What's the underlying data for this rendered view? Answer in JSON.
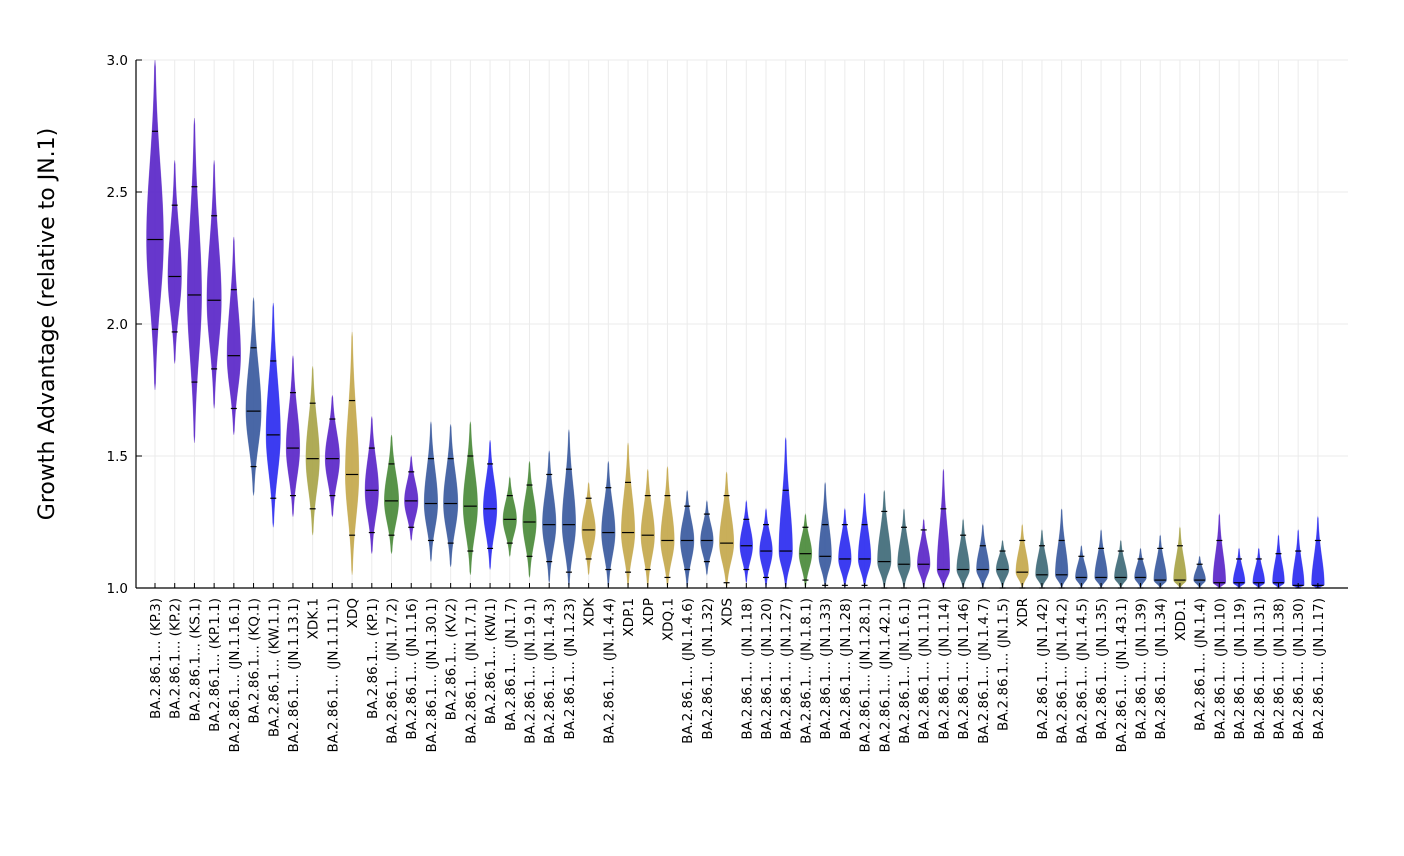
{
  "chart_data": {
    "type": "violin",
    "title": "",
    "xlabel": "",
    "ylabel": "Growth Advantage (relative to JN.1)",
    "ylim": [
      1.0,
      3.0
    ],
    "yticks": [
      "1.0",
      "1.5",
      "2.0",
      "2.5",
      "3.0"
    ],
    "grid": true,
    "legend": "none",
    "palette": {
      "purple": "#5a26c8",
      "blue": "#2b2bf0",
      "steel": "#3a5a9e",
      "green": "#4a8a3a",
      "gold": "#c4a84c",
      "teal": "#3f6a78",
      "olive": "#a8a448"
    },
    "series": [
      {
        "label": "BA.2.86.1... (KP.3)",
        "color": "purple",
        "median": 2.32,
        "q_low": 1.98,
        "q_high": 2.73,
        "min": 1.75,
        "max": 3.0,
        "width": 1.0
      },
      {
        "label": "BA.2.86.1... (KP.2)",
        "color": "purple",
        "median": 2.18,
        "q_low": 1.97,
        "q_high": 2.45,
        "min": 1.85,
        "max": 2.62,
        "width": 0.8
      },
      {
        "label": "BA.2.86.1... (KS.1)",
        "color": "purple",
        "median": 2.11,
        "q_low": 1.78,
        "q_high": 2.52,
        "min": 1.55,
        "max": 2.78,
        "width": 0.85
      },
      {
        "label": "BA.2.86.1... (KP.1.1)",
        "color": "purple",
        "median": 2.09,
        "q_low": 1.83,
        "q_high": 2.41,
        "min": 1.68,
        "max": 2.62,
        "width": 0.85
      },
      {
        "label": "BA.2.86.1... (JN.1.16.1)",
        "color": "purple",
        "median": 1.88,
        "q_low": 1.68,
        "q_high": 2.13,
        "min": 1.58,
        "max": 2.33,
        "width": 0.8
      },
      {
        "label": "BA.2.86.1... (KQ.1)",
        "color": "steel",
        "median": 1.67,
        "q_low": 1.46,
        "q_high": 1.91,
        "min": 1.35,
        "max": 2.1,
        "width": 0.9
      },
      {
        "label": "BA.2.86.1... (KW.1.1)",
        "color": "blue",
        "median": 1.58,
        "q_low": 1.34,
        "q_high": 1.86,
        "min": 1.23,
        "max": 2.08,
        "width": 0.85
      },
      {
        "label": "BA.2.86.1... (JN.1.13.1)",
        "color": "purple",
        "median": 1.53,
        "q_low": 1.35,
        "q_high": 1.74,
        "min": 1.27,
        "max": 1.88,
        "width": 0.8
      },
      {
        "label": "XDK.1",
        "color": "olive",
        "median": 1.49,
        "q_low": 1.3,
        "q_high": 1.7,
        "min": 1.2,
        "max": 1.84,
        "width": 0.8
      },
      {
        "label": "BA.2.86.1... (JN.1.11.1)",
        "color": "purple",
        "median": 1.49,
        "q_low": 1.35,
        "q_high": 1.64,
        "min": 1.27,
        "max": 1.73,
        "width": 0.85
      },
      {
        "label": "XDQ",
        "color": "gold",
        "median": 1.43,
        "q_low": 1.2,
        "q_high": 1.71,
        "min": 1.05,
        "max": 1.97,
        "width": 0.8
      },
      {
        "label": "BA.2.86.1... (KP.1)",
        "color": "purple",
        "median": 1.37,
        "q_low": 1.21,
        "q_high": 1.53,
        "min": 1.13,
        "max": 1.65,
        "width": 0.8
      },
      {
        "label": "BA.2.86.1... (JN.1.7.2)",
        "color": "green",
        "median": 1.33,
        "q_low": 1.2,
        "q_high": 1.47,
        "min": 1.13,
        "max": 1.58,
        "width": 0.85
      },
      {
        "label": "BA.2.86.1... (JN.1.16)",
        "color": "purple",
        "median": 1.33,
        "q_low": 1.23,
        "q_high": 1.44,
        "min": 1.18,
        "max": 1.5,
        "width": 0.8
      },
      {
        "label": "BA.2.86.1... (JN.1.30.1)",
        "color": "steel",
        "median": 1.32,
        "q_low": 1.18,
        "q_high": 1.49,
        "min": 1.1,
        "max": 1.63,
        "width": 0.8
      },
      {
        "label": "BA.2.86.1... (KV.2)",
        "color": "steel",
        "median": 1.32,
        "q_low": 1.17,
        "q_high": 1.49,
        "min": 1.08,
        "max": 1.62,
        "width": 0.85
      },
      {
        "label": "BA.2.86.1... (JN.1.7.1)",
        "color": "green",
        "median": 1.31,
        "q_low": 1.14,
        "q_high": 1.5,
        "min": 1.05,
        "max": 1.63,
        "width": 0.85
      },
      {
        "label": "BA.2.86.1... (KW.1)",
        "color": "blue",
        "median": 1.3,
        "q_low": 1.15,
        "q_high": 1.47,
        "min": 1.07,
        "max": 1.56,
        "width": 0.8
      },
      {
        "label": "BA.2.86.1... (JN.1.7)",
        "color": "green",
        "median": 1.26,
        "q_low": 1.17,
        "q_high": 1.35,
        "min": 1.12,
        "max": 1.42,
        "width": 0.8
      },
      {
        "label": "BA.2.86.1... (JN.1.9.1)",
        "color": "green",
        "median": 1.25,
        "q_low": 1.12,
        "q_high": 1.39,
        "min": 1.04,
        "max": 1.48,
        "width": 0.8
      },
      {
        "label": "BA.2.86.1... (JN.1.4.3)",
        "color": "steel",
        "median": 1.24,
        "q_low": 1.1,
        "q_high": 1.43,
        "min": 1.02,
        "max": 1.52,
        "width": 0.8
      },
      {
        "label": "BA.2.86.1... (JN.1.23)",
        "color": "steel",
        "median": 1.24,
        "q_low": 1.06,
        "q_high": 1.45,
        "min": 1.0,
        "max": 1.6,
        "width": 0.8
      },
      {
        "label": "XDK",
        "color": "gold",
        "median": 1.22,
        "q_low": 1.11,
        "q_high": 1.34,
        "min": 1.05,
        "max": 1.4,
        "width": 0.8
      },
      {
        "label": "BA.2.86.1... (JN.1.4.4)",
        "color": "steel",
        "median": 1.21,
        "q_low": 1.07,
        "q_high": 1.38,
        "min": 1.0,
        "max": 1.48,
        "width": 0.8
      },
      {
        "label": "XDP.1",
        "color": "gold",
        "median": 1.21,
        "q_low": 1.06,
        "q_high": 1.4,
        "min": 1.0,
        "max": 1.55,
        "width": 0.8
      },
      {
        "label": "XDP",
        "color": "gold",
        "median": 1.2,
        "q_low": 1.07,
        "q_high": 1.35,
        "min": 1.0,
        "max": 1.45,
        "width": 0.8
      },
      {
        "label": "XDQ.1",
        "color": "gold",
        "median": 1.18,
        "q_low": 1.04,
        "q_high": 1.35,
        "min": 1.0,
        "max": 1.46,
        "width": 0.8
      },
      {
        "label": "BA.2.86.1... (JN.1.4.6)",
        "color": "steel",
        "median": 1.18,
        "q_low": 1.07,
        "q_high": 1.31,
        "min": 1.0,
        "max": 1.37,
        "width": 0.8
      },
      {
        "label": "BA.2.86.1... (JN.1.32)",
        "color": "steel",
        "median": 1.18,
        "q_low": 1.1,
        "q_high": 1.28,
        "min": 1.05,
        "max": 1.33,
        "width": 0.75
      },
      {
        "label": "XDS",
        "color": "gold",
        "median": 1.17,
        "q_low": 1.02,
        "q_high": 1.35,
        "min": 1.0,
        "max": 1.44,
        "width": 0.85
      },
      {
        "label": "BA.2.86.1... (JN.1.18)",
        "color": "blue",
        "median": 1.16,
        "q_low": 1.07,
        "q_high": 1.26,
        "min": 1.02,
        "max": 1.33,
        "width": 0.75
      },
      {
        "label": "BA.2.86.1... (JN.1.20)",
        "color": "blue",
        "median": 1.14,
        "q_low": 1.04,
        "q_high": 1.24,
        "min": 1.0,
        "max": 1.3,
        "width": 0.75
      },
      {
        "label": "BA.2.86.1... (JN.1.27)",
        "color": "blue",
        "median": 1.14,
        "q_low": 1.0,
        "q_high": 1.37,
        "min": 1.0,
        "max": 1.57,
        "width": 0.8
      },
      {
        "label": "BA.2.86.1... (JN.1.8.1)",
        "color": "green",
        "median": 1.13,
        "q_low": 1.03,
        "q_high": 1.23,
        "min": 1.0,
        "max": 1.28,
        "width": 0.75
      },
      {
        "label": "BA.2.86.1... (JN.1.33)",
        "color": "steel",
        "median": 1.12,
        "q_low": 1.01,
        "q_high": 1.24,
        "min": 1.0,
        "max": 1.4,
        "width": 0.75
      },
      {
        "label": "BA.2.86.1... (JN.1.28)",
        "color": "blue",
        "median": 1.11,
        "q_low": 1.01,
        "q_high": 1.24,
        "min": 1.0,
        "max": 1.3,
        "width": 0.75
      },
      {
        "label": "BA.2.86.1... (JN.1.28.1)",
        "color": "blue",
        "median": 1.11,
        "q_low": 1.01,
        "q_high": 1.24,
        "min": 1.0,
        "max": 1.36,
        "width": 0.75
      },
      {
        "label": "BA.2.86.1... (JN.1.42.1)",
        "color": "teal",
        "median": 1.1,
        "q_low": 1.0,
        "q_high": 1.29,
        "min": 1.0,
        "max": 1.37,
        "width": 0.8
      },
      {
        "label": "BA.2.86.1... (JN.1.6.1)",
        "color": "teal",
        "median": 1.09,
        "q_low": 1.0,
        "q_high": 1.23,
        "min": 1.0,
        "max": 1.3,
        "width": 0.75
      },
      {
        "label": "BA.2.86.1... (JN.1.11)",
        "color": "purple",
        "median": 1.09,
        "q_low": 1.0,
        "q_high": 1.22,
        "min": 1.0,
        "max": 1.26,
        "width": 0.75
      },
      {
        "label": "BA.2.86.1... (JN.1.14)",
        "color": "purple",
        "median": 1.07,
        "q_low": 1.0,
        "q_high": 1.3,
        "min": 1.0,
        "max": 1.45,
        "width": 0.75
      },
      {
        "label": "BA.2.86.1... (JN.1.46)",
        "color": "teal",
        "median": 1.07,
        "q_low": 1.0,
        "q_high": 1.2,
        "min": 1.0,
        "max": 1.26,
        "width": 0.75
      },
      {
        "label": "BA.2.86.1... (JN.1.4.7)",
        "color": "steel",
        "median": 1.07,
        "q_low": 1.0,
        "q_high": 1.16,
        "min": 1.0,
        "max": 1.24,
        "width": 0.75
      },
      {
        "label": "BA.2.86.1... (JN.1.5)",
        "color": "teal",
        "median": 1.07,
        "q_low": 1.0,
        "q_high": 1.14,
        "min": 1.0,
        "max": 1.18,
        "width": 0.75
      },
      {
        "label": "XDR",
        "color": "gold",
        "median": 1.06,
        "q_low": 1.0,
        "q_high": 1.18,
        "min": 1.0,
        "max": 1.24,
        "width": 0.75
      },
      {
        "label": "BA.2.86.1... (JN.1.42)",
        "color": "teal",
        "median": 1.05,
        "q_low": 1.0,
        "q_high": 1.16,
        "min": 1.0,
        "max": 1.22,
        "width": 0.75
      },
      {
        "label": "BA.2.86.1... (JN.1.4.2)",
        "color": "steel",
        "median": 1.05,
        "q_low": 1.0,
        "q_high": 1.18,
        "min": 1.0,
        "max": 1.3,
        "width": 0.75
      },
      {
        "label": "BA.2.86.1... (JN.1.4.5)",
        "color": "steel",
        "median": 1.04,
        "q_low": 1.0,
        "q_high": 1.12,
        "min": 1.0,
        "max": 1.16,
        "width": 0.7
      },
      {
        "label": "BA.2.86.1... (JN.1.35)",
        "color": "steel",
        "median": 1.04,
        "q_low": 1.0,
        "q_high": 1.15,
        "min": 1.0,
        "max": 1.22,
        "width": 0.75
      },
      {
        "label": "BA.2.86.1... (JN.1.43.1)",
        "color": "teal",
        "median": 1.04,
        "q_low": 1.0,
        "q_high": 1.14,
        "min": 1.0,
        "max": 1.18,
        "width": 0.75
      },
      {
        "label": "BA.2.86.1... (JN.1.39)",
        "color": "steel",
        "median": 1.04,
        "q_low": 1.0,
        "q_high": 1.11,
        "min": 1.0,
        "max": 1.15,
        "width": 0.7
      },
      {
        "label": "BA.2.86.1... (JN.1.34)",
        "color": "steel",
        "median": 1.03,
        "q_low": 1.0,
        "q_high": 1.15,
        "min": 1.0,
        "max": 1.2,
        "width": 0.75
      },
      {
        "label": "XDD.1",
        "color": "olive",
        "median": 1.03,
        "q_low": 1.0,
        "q_high": 1.16,
        "min": 1.0,
        "max": 1.23,
        "width": 0.75
      },
      {
        "label": "BA.2.86.1... (JN.1.4)",
        "color": "steel",
        "median": 1.03,
        "q_low": 1.0,
        "q_high": 1.09,
        "min": 1.0,
        "max": 1.12,
        "width": 0.7
      },
      {
        "label": "BA.2.86.1... (JN.1.10)",
        "color": "purple",
        "median": 1.02,
        "q_low": 1.0,
        "q_high": 1.18,
        "min": 1.0,
        "max": 1.28,
        "width": 0.75
      },
      {
        "label": "BA.2.86.1... (JN.1.19)",
        "color": "blue",
        "median": 1.02,
        "q_low": 1.0,
        "q_high": 1.11,
        "min": 1.0,
        "max": 1.15,
        "width": 0.7
      },
      {
        "label": "BA.2.86.1... (JN.1.31)",
        "color": "blue",
        "median": 1.02,
        "q_low": 1.0,
        "q_high": 1.11,
        "min": 1.0,
        "max": 1.15,
        "width": 0.7
      },
      {
        "label": "BA.2.86.1... (JN.1.38)",
        "color": "blue",
        "median": 1.02,
        "q_low": 1.0,
        "q_high": 1.13,
        "min": 1.0,
        "max": 1.2,
        "width": 0.7
      },
      {
        "label": "BA.2.86.1... (JN.1.30)",
        "color": "blue",
        "median": 1.01,
        "q_low": 1.0,
        "q_high": 1.14,
        "min": 1.0,
        "max": 1.22,
        "width": 0.7
      },
      {
        "label": "BA.2.86.1... (JN.1.17)",
        "color": "blue",
        "median": 1.01,
        "q_low": 1.0,
        "q_high": 1.18,
        "min": 1.0,
        "max": 1.27,
        "width": 0.75
      }
    ]
  }
}
